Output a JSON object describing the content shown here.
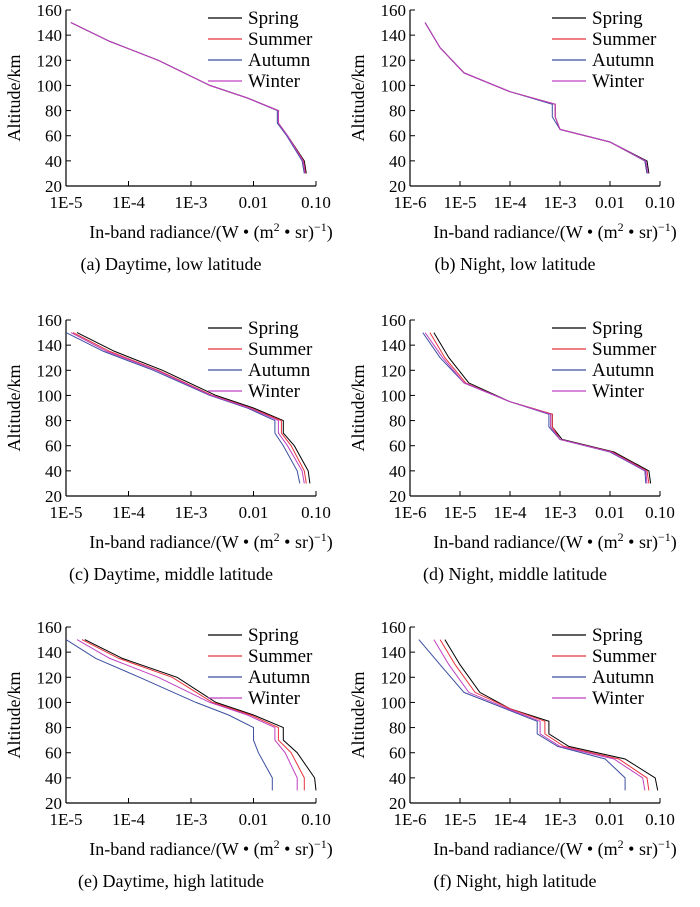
{
  "colors": {
    "spring": "#000000",
    "summer": "#e8323c",
    "autumn": "#3c4fa0",
    "winter": "#c040c0"
  },
  "chart_data": [
    {
      "type": "line",
      "caption": "(a) Daytime, low latitude",
      "xlabel": "In-band radiance/(W • (m² • sr)⁻¹)",
      "ylabel": "Altitude/km",
      "xscale": "log",
      "xlim": [
        1e-05,
        0.1
      ],
      "ylim": [
        20,
        160
      ],
      "xticks": [
        "1E-5",
        "1E-4",
        "1E-3",
        "0.01",
        "0.10"
      ],
      "yticks": [
        20,
        40,
        60,
        80,
        100,
        120,
        140,
        160
      ],
      "legend_position": "top-right",
      "series": [
        {
          "name": "Spring",
          "x": [
            1.2e-05,
            5e-05,
            0.0003,
            0.002,
            0.008,
            0.025,
            0.025,
            0.035,
            0.065,
            0.07
          ],
          "y": [
            150,
            135,
            120,
            100,
            90,
            80,
            70,
            60,
            40,
            30
          ]
        },
        {
          "name": "Summer",
          "x": [
            1.2e-05,
            5e-05,
            0.0003,
            0.002,
            0.008,
            0.025,
            0.025,
            0.035,
            0.063,
            0.068
          ],
          "y": [
            150,
            135,
            120,
            100,
            90,
            80,
            70,
            60,
            40,
            30
          ]
        },
        {
          "name": "Autumn",
          "x": [
            1.2e-05,
            5e-05,
            0.0003,
            0.002,
            0.008,
            0.024,
            0.024,
            0.034,
            0.06,
            0.065
          ],
          "y": [
            150,
            135,
            120,
            100,
            90,
            80,
            70,
            60,
            40,
            30
          ]
        },
        {
          "name": "Winter",
          "x": [
            1.2e-05,
            5e-05,
            0.0003,
            0.002,
            0.008,
            0.025,
            0.025,
            0.035,
            0.062,
            0.067
          ],
          "y": [
            150,
            135,
            120,
            100,
            90,
            80,
            70,
            60,
            40,
            30
          ]
        }
      ]
    },
    {
      "type": "line",
      "caption": "(b) Night, low latitude",
      "xlabel": "In-band radiance/(W • (m² • sr)⁻¹)",
      "ylabel": "Altitude/km",
      "xscale": "log",
      "xlim": [
        1e-06,
        0.1
      ],
      "ylim": [
        20,
        160
      ],
      "xticks": [
        "1E-6",
        "1E-5",
        "1E-4",
        "1E-3",
        "0.01",
        "0.10"
      ],
      "yticks": [
        20,
        40,
        60,
        80,
        100,
        120,
        140,
        160
      ],
      "legend_position": "top-right",
      "series": [
        {
          "name": "Spring",
          "x": [
            2e-06,
            4e-06,
            1.2e-05,
            0.0001,
            0.0008,
            0.0008,
            0.001,
            0.01,
            0.055,
            0.06
          ],
          "y": [
            150,
            130,
            110,
            95,
            85,
            75,
            65,
            55,
            40,
            30
          ]
        },
        {
          "name": "Summer",
          "x": [
            2e-06,
            4e-06,
            1.2e-05,
            0.0001,
            0.0008,
            0.0008,
            0.001,
            0.01,
            0.05,
            0.055
          ],
          "y": [
            150,
            130,
            110,
            95,
            85,
            75,
            65,
            55,
            40,
            30
          ]
        },
        {
          "name": "Autumn",
          "x": [
            2e-06,
            4e-06,
            1.2e-05,
            0.0001,
            0.0007,
            0.0007,
            0.001,
            0.01,
            0.05,
            0.055
          ],
          "y": [
            150,
            130,
            110,
            95,
            85,
            75,
            65,
            55,
            40,
            30
          ]
        },
        {
          "name": "Winter",
          "x": [
            2e-06,
            4e-06,
            1.2e-05,
            0.0001,
            0.0008,
            0.0008,
            0.001,
            0.01,
            0.052,
            0.058
          ],
          "y": [
            150,
            130,
            110,
            95,
            85,
            75,
            65,
            55,
            40,
            30
          ]
        }
      ]
    },
    {
      "type": "line",
      "caption": "(c) Daytime, middle latitude",
      "xlabel": "In-band radiance/(W • (m² • sr)⁻¹)",
      "ylabel": "Altitude/km",
      "xscale": "log",
      "xlim": [
        1e-05,
        0.1
      ],
      "ylim": [
        20,
        160
      ],
      "xticks": [
        "1E-5",
        "1E-4",
        "1E-3",
        "0.01",
        "0.10"
      ],
      "yticks": [
        20,
        40,
        60,
        80,
        100,
        120,
        140,
        160
      ],
      "legend_position": "top-right",
      "series": [
        {
          "name": "Spring",
          "x": [
            1.5e-05,
            6e-05,
            0.00035,
            0.0025,
            0.01,
            0.03,
            0.03,
            0.045,
            0.075,
            0.08
          ],
          "y": [
            150,
            135,
            120,
            100,
            90,
            80,
            70,
            60,
            40,
            30
          ]
        },
        {
          "name": "Summer",
          "x": [
            1.3e-05,
            5e-05,
            0.0003,
            0.0022,
            0.009,
            0.028,
            0.028,
            0.04,
            0.065,
            0.07
          ],
          "y": [
            150,
            135,
            120,
            100,
            90,
            80,
            70,
            60,
            40,
            30
          ]
        },
        {
          "name": "Autumn",
          "x": [
            1e-05,
            4e-05,
            0.00025,
            0.002,
            0.008,
            0.022,
            0.022,
            0.03,
            0.05,
            0.055
          ],
          "y": [
            150,
            135,
            120,
            100,
            90,
            80,
            70,
            60,
            40,
            30
          ]
        },
        {
          "name": "Winter",
          "x": [
            1.2e-05,
            4.5e-05,
            0.00028,
            0.0021,
            0.0085,
            0.025,
            0.025,
            0.035,
            0.06,
            0.065
          ],
          "y": [
            150,
            135,
            120,
            100,
            90,
            80,
            70,
            60,
            40,
            30
          ]
        }
      ]
    },
    {
      "type": "line",
      "caption": "(d) Night, middle latitude",
      "xlabel": "In-band radiance/(W • (m² • sr)⁻¹)",
      "ylabel": "Altitude/km",
      "xscale": "log",
      "xlim": [
        1e-06,
        0.1
      ],
      "ylim": [
        20,
        160
      ],
      "xticks": [
        "1E-6",
        "1E-5",
        "1E-4",
        "1E-3",
        "0.01",
        "0.10"
      ],
      "yticks": [
        20,
        40,
        60,
        80,
        100,
        120,
        140,
        160
      ],
      "legend_position": "top-right",
      "series": [
        {
          "name": "Spring",
          "x": [
            3e-06,
            6e-06,
            1.5e-05,
            0.0001,
            0.0007,
            0.0007,
            0.0011,
            0.012,
            0.06,
            0.065
          ],
          "y": [
            150,
            130,
            110,
            95,
            85,
            75,
            65,
            55,
            40,
            30
          ]
        },
        {
          "name": "Summer",
          "x": [
            2.5e-06,
            5e-06,
            1.3e-05,
            0.0001,
            0.0007,
            0.0007,
            0.001,
            0.011,
            0.055,
            0.06
          ],
          "y": [
            150,
            130,
            110,
            95,
            85,
            75,
            65,
            55,
            40,
            30
          ]
        },
        {
          "name": "Autumn",
          "x": [
            1.8e-06,
            4e-06,
            1.2e-05,
            0.0001,
            0.0006,
            0.0006,
            0.001,
            0.01,
            0.05,
            0.052
          ],
          "y": [
            150,
            130,
            110,
            95,
            85,
            75,
            65,
            55,
            40,
            30
          ]
        },
        {
          "name": "Winter",
          "x": [
            2e-06,
            4.5e-06,
            1.2e-05,
            0.0001,
            0.00065,
            0.00065,
            0.001,
            0.0105,
            0.052,
            0.055
          ],
          "y": [
            150,
            130,
            110,
            95,
            85,
            75,
            65,
            55,
            40,
            30
          ]
        }
      ]
    },
    {
      "type": "line",
      "caption": "(e) Daytime, high latitude",
      "xlabel": "In-band radiance/(W • (m² • sr)⁻¹)",
      "ylabel": "Altitude/km",
      "xscale": "log",
      "xlim": [
        1e-05,
        0.1
      ],
      "ylim": [
        20,
        160
      ],
      "xticks": [
        "1E-5",
        "1E-4",
        "1E-3",
        "0.01",
        "0.10"
      ],
      "yticks": [
        20,
        40,
        60,
        80,
        100,
        120,
        140,
        160
      ],
      "legend_position": "top-right",
      "series": [
        {
          "name": "Spring",
          "x": [
            2e-05,
            8e-05,
            0.0006,
            0.0025,
            0.01,
            0.03,
            0.03,
            0.05,
            0.095,
            0.1
          ],
          "y": [
            150,
            135,
            120,
            100,
            90,
            80,
            70,
            60,
            40,
            30
          ]
        },
        {
          "name": "Summer",
          "x": [
            1.8e-05,
            7e-05,
            0.0005,
            0.0022,
            0.009,
            0.025,
            0.025,
            0.04,
            0.065,
            0.065
          ],
          "y": [
            150,
            135,
            120,
            100,
            90,
            80,
            70,
            60,
            40,
            30
          ]
        },
        {
          "name": "Autumn",
          "x": [
            1e-05,
            3e-05,
            0.00015,
            0.0012,
            0.004,
            0.01,
            0.01,
            0.012,
            0.02,
            0.02
          ],
          "y": [
            150,
            135,
            120,
            100,
            90,
            80,
            70,
            60,
            40,
            30
          ]
        },
        {
          "name": "Winter",
          "x": [
            1.5e-05,
            5e-05,
            0.0003,
            0.002,
            0.008,
            0.022,
            0.022,
            0.032,
            0.05,
            0.05
          ],
          "y": [
            150,
            135,
            120,
            100,
            90,
            80,
            70,
            60,
            40,
            30
          ]
        }
      ]
    },
    {
      "type": "line",
      "caption": "(f) Night, high latitude",
      "xlabel": "In-band radiance/(W • (m² • sr)⁻¹)",
      "ylabel": "Altitude/km",
      "xscale": "log",
      "xlim": [
        1e-06,
        0.1
      ],
      "ylim": [
        20,
        160
      ],
      "xticks": [
        "1E-6",
        "1E-5",
        "1E-4",
        "1E-3",
        "0.01",
        "0.10"
      ],
      "yticks": [
        20,
        40,
        60,
        80,
        100,
        120,
        140,
        160
      ],
      "legend_position": "top-right",
      "series": [
        {
          "name": "Spring",
          "x": [
            5e-06,
            1e-05,
            2.5e-05,
            0.0001,
            0.0006,
            0.0006,
            0.0015,
            0.02,
            0.08,
            0.09
          ],
          "y": [
            150,
            130,
            108,
            95,
            85,
            75,
            65,
            55,
            40,
            30
          ]
        },
        {
          "name": "Summer",
          "x": [
            4e-06,
            8e-06,
            2e-05,
            0.0001,
            0.0005,
            0.0005,
            0.0012,
            0.015,
            0.055,
            0.06
          ],
          "y": [
            150,
            130,
            108,
            95,
            85,
            75,
            65,
            55,
            40,
            30
          ]
        },
        {
          "name": "Autumn",
          "x": [
            1.5e-06,
            4e-06,
            1.2e-05,
            8e-05,
            0.00035,
            0.00035,
            0.0009,
            0.008,
            0.02,
            0.02
          ],
          "y": [
            150,
            130,
            108,
            95,
            85,
            75,
            65,
            55,
            40,
            30
          ]
        },
        {
          "name": "Winter",
          "x": [
            3e-06,
            6e-06,
            1.5e-05,
            9e-05,
            0.0004,
            0.0004,
            0.001,
            0.012,
            0.045,
            0.05
          ],
          "y": [
            150,
            130,
            108,
            95,
            85,
            75,
            65,
            55,
            40,
            30
          ]
        }
      ]
    }
  ]
}
